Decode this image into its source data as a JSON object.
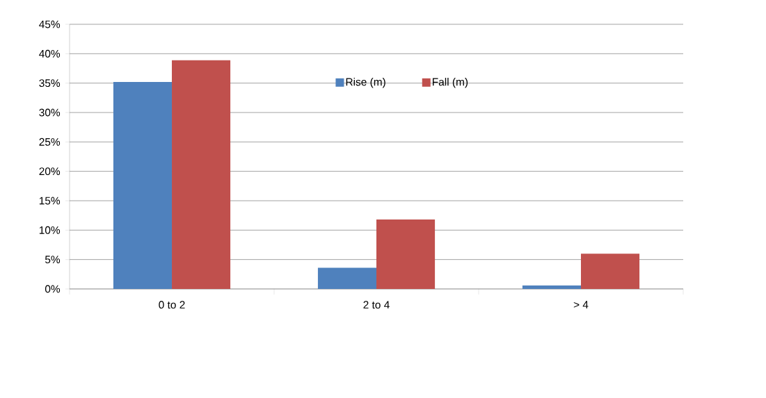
{
  "chart_data": {
    "type": "bar",
    "categories": [
      "0 to 2",
      "2 to 4",
      "> 4"
    ],
    "series": [
      {
        "name": "Rise (m)",
        "color": "#4f81bd",
        "values": [
          35.2,
          3.6,
          0.6
        ]
      },
      {
        "name": "Fall (m)",
        "color": "#c0504d",
        "values": [
          38.9,
          11.8,
          6.0
        ]
      }
    ],
    "ylim": [
      0,
      45
    ],
    "yticks": [
      {
        "value": 0,
        "label": "0%"
      },
      {
        "value": 5,
        "label": "5%"
      },
      {
        "value": 10,
        "label": "10%"
      },
      {
        "value": 15,
        "label": "15%"
      },
      {
        "value": 20,
        "label": "20%"
      },
      {
        "value": 25,
        "label": "25%"
      },
      {
        "value": 30,
        "label": "30%"
      },
      {
        "value": 35,
        "label": "35%"
      },
      {
        "value": 40,
        "label": "40%"
      },
      {
        "value": 45,
        "label": "45%"
      }
    ],
    "grid": "y",
    "legend": "top"
  }
}
